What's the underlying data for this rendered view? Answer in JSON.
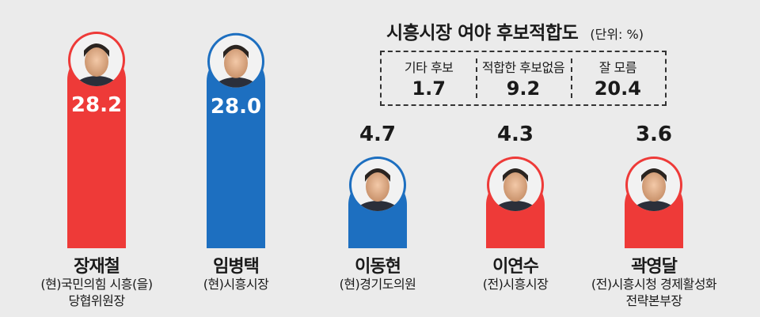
{
  "title": "시흥시장 여야 후보적합도",
  "unit": "(단위: %)",
  "colors": {
    "red": "#ee3a38",
    "blue": "#1d6fc0",
    "background": "#ebebeb"
  },
  "chart_data": {
    "type": "bar",
    "title": "시흥시장 여야 후보적합도",
    "unit": "(단위: %)",
    "categories": [
      "장재철",
      "임병택",
      "이동현",
      "이연수",
      "곽영달"
    ],
    "values": [
      28.2,
      28.0,
      4.7,
      4.3,
      3.6
    ],
    "value_labels": [
      "28.2",
      "28.0",
      "4.7",
      "4.3",
      "3.6"
    ],
    "roles": [
      [
        "(현)국민의힘 시흥(을)",
        "당협위원장"
      ],
      [
        "(현)시흥시장"
      ],
      [
        "(현)경기도의원"
      ],
      [
        "(전)시흥시장"
      ],
      [
        "(전)시흥시청 경제활성화",
        "전략본부장"
      ]
    ],
    "bar_colors": [
      "#ee3a38",
      "#1d6fc0",
      "#1d6fc0",
      "#ee3a38",
      "#ee3a38"
    ],
    "ylim": [
      0,
      28.2
    ],
    "grid": false,
    "legend": "none"
  },
  "others": [
    {
      "label": "기타 후보",
      "value": "1.7"
    },
    {
      "label": "적합한 후보없음",
      "value": "9.2"
    },
    {
      "label": "잘 모름",
      "value": "20.4"
    }
  ]
}
